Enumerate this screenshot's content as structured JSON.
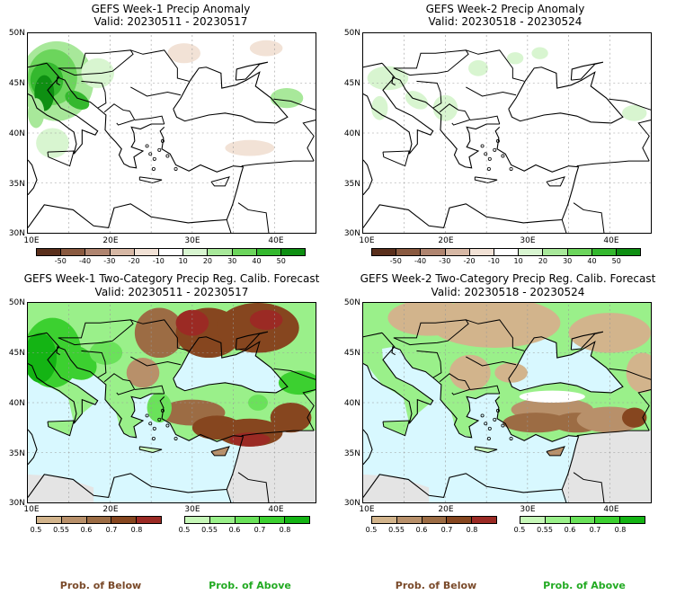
{
  "panels": [
    {
      "title": "GEFS Week-1 Precip Anomaly",
      "valid": "Valid: 20230511 - 20230517"
    },
    {
      "title": "GEFS Week-2 Precip Anomaly",
      "valid": "Valid: 20230518 - 20230524"
    },
    {
      "title": "GEFS Week-1 Two-Category Precip Reg. Calib. Forecast",
      "valid": "Valid: 20230511 - 20230517"
    },
    {
      "title": "GEFS Week-2 Two-Category Precip Reg. Calib. Forecast",
      "valid": "Valid: 20230518 - 20230524"
    }
  ],
  "axes": {
    "lat_labels": [
      "50N",
      "45N",
      "40N",
      "35N",
      "30N"
    ],
    "lon_labels": [
      "10E",
      "20E",
      "30E",
      "40E"
    ]
  },
  "anomaly_colorbar": {
    "labels": [
      "-50",
      "-40",
      "-30",
      "-20",
      "-10",
      "10",
      "20",
      "30",
      "40",
      "50"
    ],
    "colors": [
      "#5a2f1c",
      "#8a5a40",
      "#b08570",
      "#d7b8a5",
      "#f2e2d6",
      "#ffffff",
      "#d8f5d0",
      "#a8e89a",
      "#6cd55c",
      "#34b82e",
      "#0e8f12"
    ]
  },
  "prob_below_colorbar": {
    "labels": [
      "0.5",
      "0.55",
      "0.6",
      "0.7",
      "0.8"
    ],
    "colors": [
      "#d2b48c",
      "#b8906a",
      "#9c6c44",
      "#86461f",
      "#9b2a24"
    ]
  },
  "prob_above_colorbar": {
    "labels": [
      "0.5",
      "0.55",
      "0.6",
      "0.7",
      "0.8"
    ],
    "colors": [
      "#c6f7b8",
      "#9af08a",
      "#6ae25a",
      "#3cd030",
      "#14b414"
    ]
  },
  "legend": {
    "below_label": "Prob. of Below",
    "above_label": "Prob. of Above",
    "below_color": "#7a4a2a",
    "above_color": "#22aa22"
  },
  "map_colors": {
    "water": "#d8f8ff",
    "land_neutral": "#ffffff",
    "grey": "#e4e4e4"
  }
}
